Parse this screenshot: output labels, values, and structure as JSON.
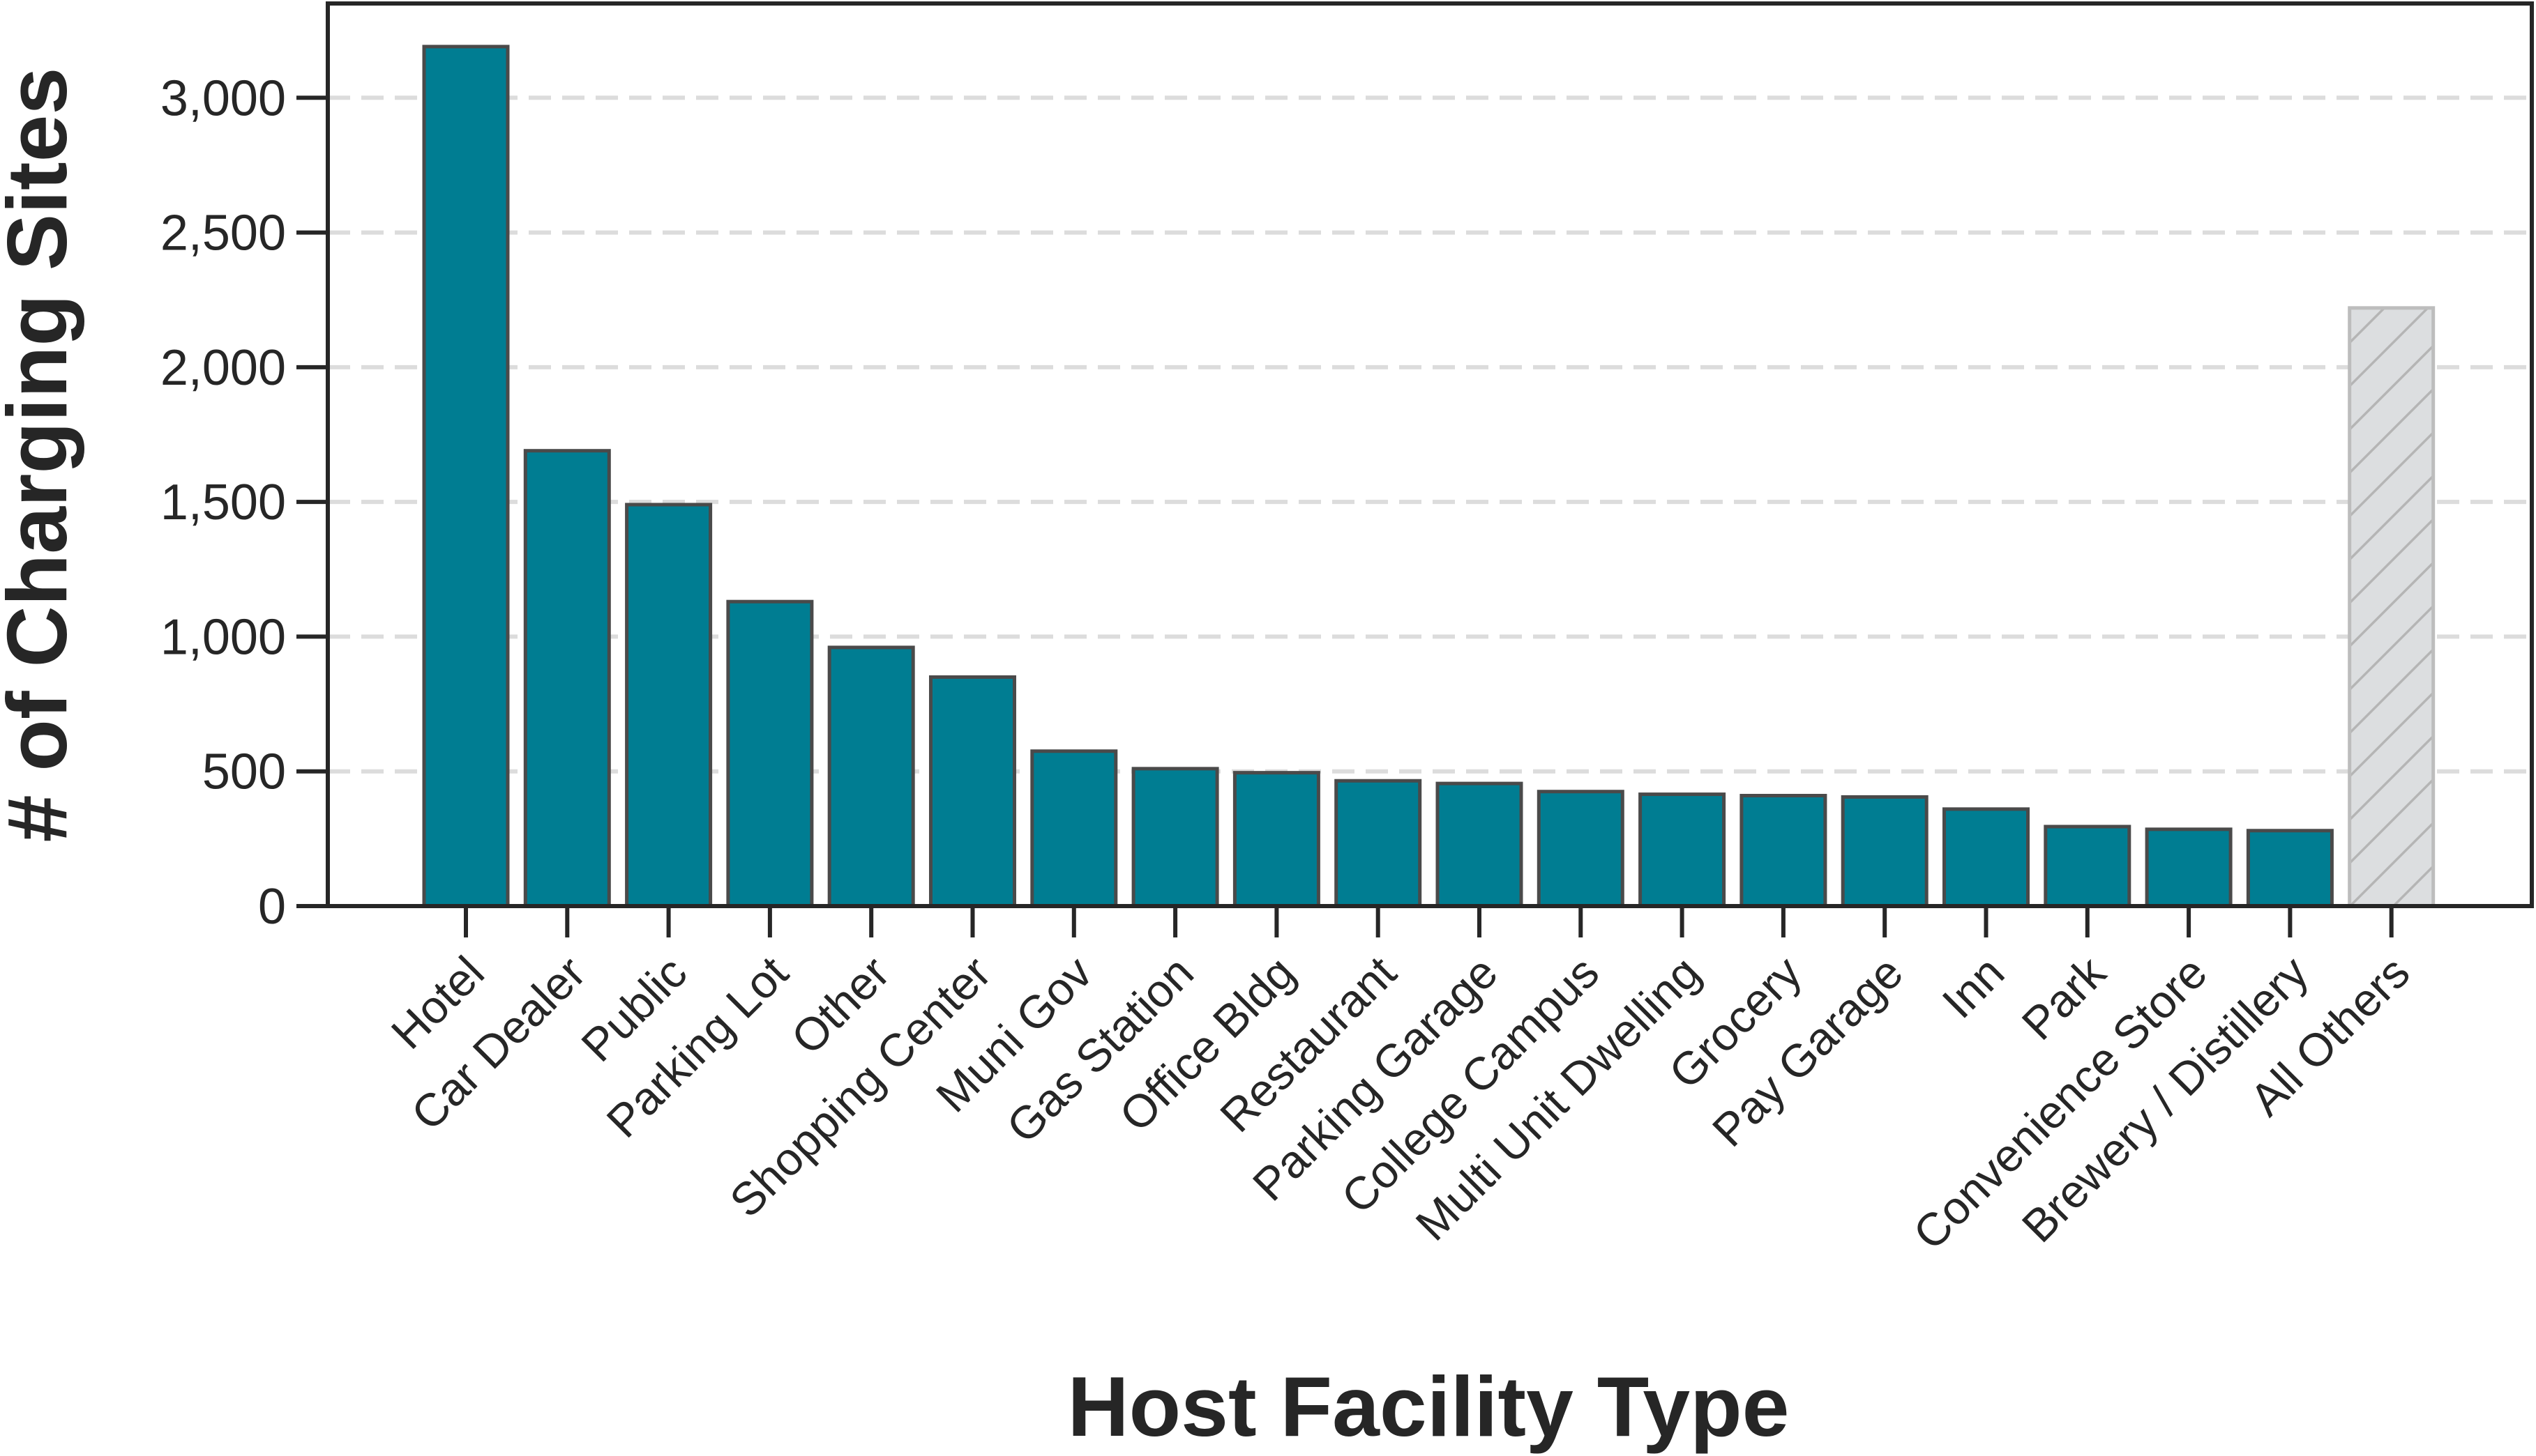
{
  "chart_data": {
    "type": "bar",
    "title": "",
    "xlabel": "Host Facility Type",
    "ylabel": "# of Charging Sites",
    "ylim": [
      0,
      3350
    ],
    "yticks": [
      0,
      500,
      1000,
      1500,
      2000,
      2500,
      3000
    ],
    "ytick_labels": [
      "0",
      "500",
      "1,000",
      "1,500",
      "2,000",
      "2,500",
      "3,000"
    ],
    "grid": "horizontal dashed",
    "categories": [
      "Hotel",
      "Car Dealer",
      "Public",
      "Parking Lot",
      "Other",
      "Shopping Center",
      "Muni Gov",
      "Gas Station",
      "Office Bldg",
      "Restaurant",
      "Parking Garage",
      "College Campus",
      "Multi Unit Dwelling",
      "Grocery",
      "Pay Garage",
      "Inn",
      "Park",
      "Convenience Store",
      "Brewery / Distillery",
      "All Others"
    ],
    "values": [
      3190,
      1690,
      1490,
      1130,
      960,
      850,
      575,
      510,
      495,
      465,
      455,
      425,
      415,
      410,
      405,
      360,
      295,
      285,
      280,
      2220
    ],
    "colors": {
      "bar": "#007D92",
      "bar_edge": "#4A4A4A",
      "other_fill": "#DCDEE0",
      "other_edge": "#BDBDBD",
      "other_hatch": "#B5B5B5",
      "grid": "#DCDCDC",
      "axis": "#262626"
    }
  }
}
